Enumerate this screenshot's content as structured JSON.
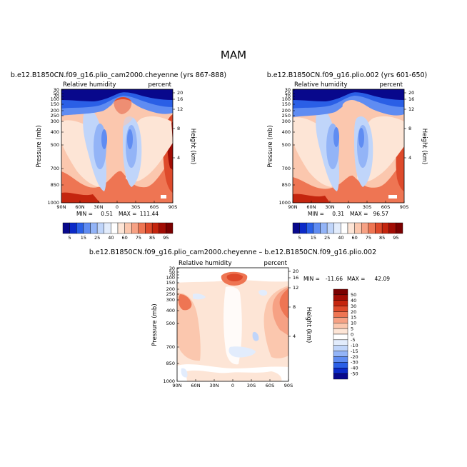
{
  "figure": {
    "season": "MAM",
    "palette_abs": [
      "#08088c",
      "#0b2ac8",
      "#2a5fe6",
      "#5f8cf2",
      "#93b4f7",
      "#c0d5fa",
      "#e2ecfc",
      "#ffffff",
      "#fde5d6",
      "#fbc7ae",
      "#f6a184",
      "#ee7553",
      "#de4a2b",
      "#c4250e",
      "#a20c04",
      "#7a0000"
    ],
    "palette_diff": [
      "#08088c",
      "#0b2ac8",
      "#2a5fe6",
      "#5f8cf2",
      "#93b4f7",
      "#c0d5fa",
      "#e2ecfc",
      "#ffffff",
      "#fde5d6",
      "#fbc7ae",
      "#f6a184",
      "#ee7553",
      "#de4a2b",
      "#c4250e",
      "#a20c04",
      "#7a0000"
    ]
  },
  "chart_data": [
    {
      "type": "heatmap",
      "title": "b.e12.B1850CN.f09_g16.plio_cam2000.cheyenne (yrs 867-888)",
      "left_string": "Relative humidity",
      "right_string": "percent",
      "ylabel": "Pressure (mb)",
      "ylabel_right": "Height (km)",
      "x_ticks": [
        "90N",
        "60N",
        "30N",
        "0",
        "30S",
        "60S",
        "90S"
      ],
      "y_ticks": [
        "30",
        "50",
        "70",
        "100",
        "150",
        "200",
        "250",
        "300",
        "400",
        "500",
        "700",
        "850",
        "1000"
      ],
      "yr_ticks": [
        "20",
        "16",
        "12",
        "8",
        "4"
      ],
      "min_label": "MIN =",
      "min": "0.51",
      "max_label": "MAX =",
      "max": "111.44",
      "colorbar_labels": [
        "5",
        "15",
        "25",
        "40",
        "60",
        "75",
        "85",
        "95"
      ]
    },
    {
      "type": "heatmap",
      "title": "b.e12.B1850CN.f09_g16.plio.002 (yrs 601-650)",
      "left_string": "Relative humidity",
      "right_string": "percent",
      "ylabel": "Pressure (mb)",
      "ylabel_right": "Height (km)",
      "x_ticks": [
        "90N",
        "60N",
        "30N",
        "0",
        "30S",
        "60S",
        "90S"
      ],
      "y_ticks": [
        "30",
        "50",
        "70",
        "100",
        "150",
        "200",
        "250",
        "300",
        "400",
        "500",
        "700",
        "850",
        "1000"
      ],
      "yr_ticks": [
        "20",
        "16",
        "12",
        "8",
        "4"
      ],
      "min_label": "MIN =",
      "min": "0.31",
      "max_label": "MAX =",
      "max": "96.57",
      "colorbar_labels": [
        "5",
        "15",
        "25",
        "40",
        "60",
        "75",
        "85",
        "95"
      ]
    },
    {
      "type": "heatmap",
      "title": "b.e12.B1850CN.f09_g16.plio_cam2000.cheyenne – b.e12.B1850CN.f09_g16.plio.002",
      "left_string": "Relative humidity",
      "right_string": "percent",
      "ylabel": "Pressure (mb)",
      "ylabel_right": "Height (km)",
      "x_ticks": [
        "90N",
        "60N",
        "30N",
        "0",
        "30S",
        "60S",
        "90S"
      ],
      "y_ticks": [
        "30",
        "50",
        "70",
        "100",
        "150",
        "200",
        "250",
        "300",
        "400",
        "500",
        "700",
        "850",
        "1000"
      ],
      "yr_ticks": [
        "20",
        "16",
        "12",
        "8",
        "4"
      ],
      "min_label": "MIN =",
      "min": "-11.66",
      "max_label": "MAX =",
      "max": "42.09",
      "colorbar_labels": [
        "50",
        "40",
        "30",
        "20",
        "15",
        "10",
        "5",
        "0",
        "-5",
        "-10",
        "-15",
        "-20",
        "-30",
        "-40",
        "-50"
      ]
    }
  ]
}
